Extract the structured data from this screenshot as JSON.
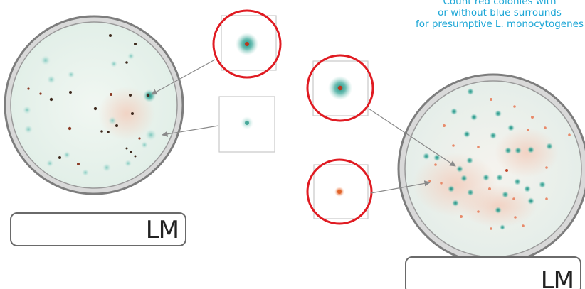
{
  "caption": {
    "line1": "Count red colonies with",
    "line2": "or without blue surrounds",
    "line3": "for presumptive L. monocytogenes",
    "color": "#1ba6d6"
  },
  "plates": [
    {
      "label": "LM",
      "agar_color": "#e8f3ee"
    },
    {
      "label": "LM",
      "agar_color": "#eef1ec"
    }
  ],
  "colors": {
    "highlight_circle": "#e01b22",
    "teal_halo": "#2f9d8f",
    "red_colony": "#b8391f",
    "orange_colony": "#e0642a",
    "rim": "#7d7d7d"
  }
}
